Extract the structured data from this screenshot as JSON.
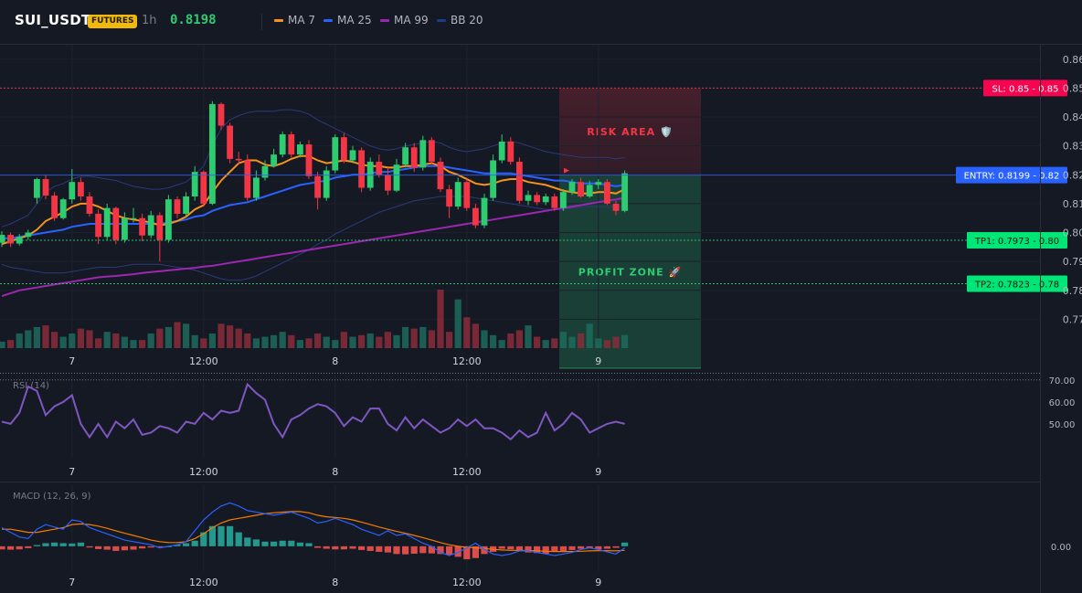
{
  "header": {
    "symbol": "SUI_USDT",
    "badge": "FUTURES",
    "timeframe": "1h",
    "price": "0.8198",
    "legend": [
      {
        "label": "MA 7",
        "color": "#f7931a"
      },
      {
        "label": "MA 25",
        "color": "#2962ff"
      },
      {
        "label": "MA 99",
        "color": "#9c27b0"
      },
      {
        "label": "BB 20",
        "color": "#1e3a8a"
      }
    ]
  },
  "colors": {
    "up": "#2ecc71",
    "down": "#f23645",
    "ma7": "#f7931a",
    "ma25": "#2962ff",
    "ma99": "#9c27b0",
    "bb": "#2a3a7a",
    "rsi": "#7e57c2",
    "macd": "#2962ff",
    "signal": "#f57c00"
  },
  "chart_data": [
    {
      "type": "candlestick",
      "name": "price",
      "x_labels": [
        "7",
        "12:00",
        "8",
        "12:00",
        "9"
      ],
      "x_label_index": [
        8,
        23,
        38,
        53,
        68
      ],
      "ylim": [
        0.76,
        0.865
      ],
      "y_ticks": [
        "0.86",
        "0.85",
        "0.84",
        "0.83",
        "0.82",
        "0.81",
        "0.80",
        "0.79",
        "0.78",
        "0.77"
      ],
      "y_tick_values": [
        0.86,
        0.85,
        0.84,
        0.83,
        0.82,
        0.81,
        0.8,
        0.79,
        0.78,
        0.77
      ],
      "close": [
        0.7992,
        0.7962,
        0.7985,
        0.8,
        0.8185,
        0.8128,
        0.805,
        0.8115,
        0.8175,
        0.8125,
        0.8065,
        0.7985,
        0.8085,
        0.7975,
        0.805,
        0.805,
        0.799,
        0.806,
        0.7975,
        0.8115,
        0.8065,
        0.8125,
        0.821,
        0.81,
        0.8445,
        0.837,
        0.8255,
        0.825,
        0.812,
        0.819,
        0.823,
        0.827,
        0.834,
        0.827,
        0.8305,
        0.8195,
        0.812,
        0.8215,
        0.833,
        0.825,
        0.8285,
        0.8155,
        0.8245,
        0.82,
        0.8145,
        0.8235,
        0.8295,
        0.8225,
        0.832,
        0.8245,
        0.815,
        0.809,
        0.8175,
        0.8085,
        0.8025,
        0.812,
        0.825,
        0.8315,
        0.8245,
        0.811,
        0.813,
        0.8105,
        0.8125,
        0.8085,
        0.814,
        0.8175,
        0.8125,
        0.8165,
        0.8175,
        0.81,
        0.8075,
        0.8205
      ],
      "open": [
        0.7965,
        0.7992,
        0.7962,
        0.7985,
        0.812,
        0.8185,
        0.8128,
        0.805,
        0.8115,
        0.8175,
        0.8125,
        0.8065,
        0.7985,
        0.8085,
        0.7975,
        0.805,
        0.805,
        0.799,
        0.806,
        0.7975,
        0.8115,
        0.8065,
        0.8125,
        0.821,
        0.81,
        0.8445,
        0.837,
        0.8255,
        0.825,
        0.812,
        0.819,
        0.823,
        0.827,
        0.834,
        0.827,
        0.8305,
        0.8195,
        0.812,
        0.8215,
        0.833,
        0.825,
        0.8285,
        0.8155,
        0.8245,
        0.82,
        0.8145,
        0.8235,
        0.8295,
        0.8225,
        0.832,
        0.8245,
        0.815,
        0.809,
        0.8175,
        0.8085,
        0.8025,
        0.812,
        0.825,
        0.8315,
        0.8245,
        0.811,
        0.813,
        0.8105,
        0.8125,
        0.8085,
        0.814,
        0.8175,
        0.8125,
        0.8165,
        0.8175,
        0.81,
        0.8075
      ],
      "high": [
        0.8005,
        0.8,
        0.7995,
        0.801,
        0.819,
        0.82,
        0.814,
        0.812,
        0.822,
        0.819,
        0.814,
        0.808,
        0.81,
        0.809,
        0.807,
        0.8085,
        0.8065,
        0.8075,
        0.807,
        0.813,
        0.8125,
        0.814,
        0.823,
        0.8215,
        0.8455,
        0.845,
        0.838,
        0.828,
        0.827,
        0.8215,
        0.825,
        0.829,
        0.835,
        0.835,
        0.8315,
        0.832,
        0.821,
        0.823,
        0.834,
        0.8345,
        0.83,
        0.8295,
        0.826,
        0.827,
        0.8225,
        0.8255,
        0.831,
        0.831,
        0.8335,
        0.833,
        0.826,
        0.8165,
        0.819,
        0.8185,
        0.81,
        0.8135,
        0.827,
        0.834,
        0.833,
        0.826,
        0.8145,
        0.814,
        0.8135,
        0.8135,
        0.815,
        0.8185,
        0.819,
        0.818,
        0.8185,
        0.8185,
        0.811,
        0.8215
      ],
      "low": [
        0.795,
        0.795,
        0.7955,
        0.7975,
        0.81,
        0.8115,
        0.804,
        0.8045,
        0.81,
        0.811,
        0.8055,
        0.796,
        0.7975,
        0.796,
        0.7965,
        0.8035,
        0.797,
        0.798,
        0.79,
        0.7965,
        0.805,
        0.8055,
        0.811,
        0.809,
        0.8095,
        0.8355,
        0.824,
        0.8235,
        0.811,
        0.811,
        0.818,
        0.8225,
        0.826,
        0.826,
        0.826,
        0.8185,
        0.808,
        0.811,
        0.8205,
        0.824,
        0.824,
        0.814,
        0.8145,
        0.819,
        0.813,
        0.814,
        0.8225,
        0.821,
        0.8215,
        0.8235,
        0.814,
        0.805,
        0.808,
        0.8075,
        0.8015,
        0.8015,
        0.811,
        0.824,
        0.8235,
        0.81,
        0.8095,
        0.8095,
        0.8095,
        0.8075,
        0.8075,
        0.813,
        0.812,
        0.812,
        0.815,
        0.8095,
        0.806,
        0.807
      ],
      "ma7": [
        0.796,
        0.797,
        0.798,
        0.799,
        0.801,
        0.804,
        0.8055,
        0.807,
        0.809,
        0.81,
        0.81,
        0.809,
        0.8075,
        0.806,
        0.805,
        0.8045,
        0.804,
        0.8035,
        0.8025,
        0.803,
        0.804,
        0.8055,
        0.808,
        0.8095,
        0.814,
        0.818,
        0.821,
        0.824,
        0.825,
        0.825,
        0.8235,
        0.823,
        0.824,
        0.8255,
        0.8265,
        0.8265,
        0.825,
        0.824,
        0.8245,
        0.825,
        0.8245,
        0.8235,
        0.823,
        0.823,
        0.8225,
        0.8225,
        0.823,
        0.823,
        0.8235,
        0.824,
        0.823,
        0.821,
        0.82,
        0.8185,
        0.817,
        0.8165,
        0.817,
        0.818,
        0.8185,
        0.8185,
        0.8175,
        0.817,
        0.8165,
        0.8155,
        0.8145,
        0.814,
        0.8135,
        0.8135,
        0.814,
        0.814,
        0.8135,
        0.815
      ],
      "ma25": [
        0.798,
        0.798,
        0.7985,
        0.799,
        0.7995,
        0.8,
        0.8005,
        0.801,
        0.802,
        0.8025,
        0.803,
        0.803,
        0.803,
        0.803,
        0.803,
        0.803,
        0.803,
        0.803,
        0.803,
        0.8035,
        0.804,
        0.8045,
        0.8055,
        0.806,
        0.8075,
        0.8085,
        0.8095,
        0.81,
        0.8105,
        0.8115,
        0.8125,
        0.8135,
        0.8145,
        0.8155,
        0.8165,
        0.817,
        0.8175,
        0.818,
        0.819,
        0.8195,
        0.82,
        0.82,
        0.8205,
        0.821,
        0.821,
        0.8215,
        0.822,
        0.8225,
        0.823,
        0.823,
        0.823,
        0.8225,
        0.822,
        0.8215,
        0.821,
        0.8205,
        0.8205,
        0.8205,
        0.8205,
        0.82,
        0.8195,
        0.819,
        0.8185,
        0.818,
        0.818,
        0.8175,
        0.817,
        0.817,
        0.817,
        0.8165,
        0.816,
        0.8165
      ],
      "ma99": [
        0.778,
        0.779,
        0.78,
        0.7805,
        0.781,
        0.7815,
        0.782,
        0.7825,
        0.783,
        0.7835,
        0.784,
        0.7845,
        0.7848,
        0.785,
        0.7853,
        0.7856,
        0.786,
        0.7863,
        0.7866,
        0.7869,
        0.7872,
        0.7875,
        0.7878,
        0.7882,
        0.7885,
        0.789,
        0.7895,
        0.79,
        0.7905,
        0.791,
        0.7915,
        0.792,
        0.7925,
        0.793,
        0.7935,
        0.794,
        0.7945,
        0.795,
        0.7955,
        0.796,
        0.7965,
        0.797,
        0.7975,
        0.798,
        0.7985,
        0.799,
        0.7995,
        0.8,
        0.8005,
        0.801,
        0.8015,
        0.802,
        0.8025,
        0.803,
        0.8035,
        0.804,
        0.8045,
        0.805,
        0.8055,
        0.806,
        0.8065,
        0.807,
        0.8075,
        0.808,
        0.8085,
        0.809,
        0.8095,
        0.81,
        0.8105,
        0.811,
        0.8115,
        0.812
      ],
      "bb_upper": [
        0.802,
        0.803,
        0.8045,
        0.806,
        0.81,
        0.814,
        0.816,
        0.817,
        0.8185,
        0.8195,
        0.8195,
        0.819,
        0.8185,
        0.818,
        0.817,
        0.816,
        0.8155,
        0.815,
        0.815,
        0.8155,
        0.8165,
        0.8175,
        0.82,
        0.823,
        0.83,
        0.836,
        0.839,
        0.8405,
        0.8415,
        0.842,
        0.842,
        0.842,
        0.8425,
        0.8425,
        0.842,
        0.841,
        0.839,
        0.8375,
        0.836,
        0.8345,
        0.833,
        0.8315,
        0.83,
        0.829,
        0.8285,
        0.829,
        0.83,
        0.8305,
        0.831,
        0.8315,
        0.831,
        0.8295,
        0.8285,
        0.828,
        0.8285,
        0.829,
        0.83,
        0.831,
        0.8315,
        0.831,
        0.83,
        0.829,
        0.828,
        0.8275,
        0.827,
        0.8265,
        0.826,
        0.826,
        0.826,
        0.826,
        0.8255,
        0.826
      ],
      "bb_lower": [
        0.789,
        0.788,
        0.7875,
        0.787,
        0.7865,
        0.786,
        0.786,
        0.786,
        0.7865,
        0.787,
        0.7875,
        0.788,
        0.788,
        0.788,
        0.7885,
        0.789,
        0.789,
        0.789,
        0.789,
        0.7885,
        0.788,
        0.7875,
        0.787,
        0.786,
        0.785,
        0.784,
        0.7835,
        0.7835,
        0.784,
        0.785,
        0.7865,
        0.788,
        0.7895,
        0.791,
        0.7925,
        0.794,
        0.796,
        0.7975,
        0.7995,
        0.801,
        0.8025,
        0.804,
        0.8055,
        0.807,
        0.808,
        0.809,
        0.81,
        0.811,
        0.8115,
        0.812,
        0.8125,
        0.8125,
        0.8125,
        0.8125,
        0.812,
        0.8115,
        0.811,
        0.8105,
        0.81,
        0.8095,
        0.809,
        0.8085,
        0.808,
        0.808,
        0.808,
        0.8085,
        0.809,
        0.809,
        0.809,
        0.809,
        0.809,
        0.809
      ],
      "volume": [
        8,
        10,
        18,
        22,
        26,
        28,
        20,
        14,
        18,
        24,
        22,
        12,
        20,
        18,
        14,
        10,
        10,
        18,
        24,
        26,
        32,
        30,
        16,
        12,
        18,
        30,
        28,
        24,
        18,
        12,
        14,
        16,
        20,
        16,
        10,
        12,
        18,
        14,
        10,
        20,
        14,
        16,
        18,
        14,
        20,
        16,
        26,
        24,
        26,
        22,
        72,
        20,
        60,
        38,
        30,
        22,
        16,
        10,
        18,
        22,
        28,
        14,
        10,
        12,
        20,
        14,
        18,
        30,
        12,
        10,
        14,
        16
      ]
    },
    {
      "type": "line",
      "name": "RSI (14)",
      "ylim": [
        35,
        72
      ],
      "y_ticks": [
        "70.00",
        "60.00",
        "50.00"
      ],
      "y_tick_values": [
        70,
        60,
        50
      ],
      "reference_line": 70,
      "values": [
        51,
        50,
        55,
        67,
        65,
        54,
        58,
        60,
        63,
        50,
        44,
        50,
        44,
        51,
        48,
        52,
        45,
        46,
        49,
        48,
        46,
        51,
        50,
        55,
        52,
        56,
        55,
        56,
        68,
        64,
        61,
        50,
        44,
        52,
        54,
        57,
        59,
        58,
        55,
        49,
        53,
        51,
        57,
        57,
        50,
        47,
        53,
        48,
        52,
        49,
        46,
        48,
        52,
        49,
        52,
        48,
        48,
        46,
        43,
        47,
        44,
        46,
        55,
        47,
        50,
        55,
        52,
        46,
        48,
        50,
        51,
        50
      ]
    },
    {
      "type": "bar+line",
      "name": "MACD (12, 26, 9)",
      "ylim": [
        -0.008,
        0.02
      ],
      "y_ticks": [
        "0.00"
      ],
      "y_tick_values": [
        0.0
      ],
      "histogram": [
        -0.001,
        -0.0011,
        -0.001,
        -0.0006,
        0.0004,
        0.001,
        0.0012,
        0.001,
        0.0009,
        0.0012,
        -0.0004,
        -0.0009,
        -0.0011,
        -0.0015,
        -0.0013,
        -0.0011,
        -0.0007,
        -0.0004,
        -0.0002,
        0.0,
        0.0005,
        0.001,
        0.0018,
        0.0045,
        0.0065,
        0.0065,
        0.0065,
        0.0045,
        0.0028,
        0.0022,
        0.0015,
        0.0015,
        0.0018,
        0.0018,
        0.0012,
        0.001,
        -0.0005,
        -0.0008,
        -0.001,
        -0.001,
        -0.0008,
        -0.0012,
        -0.0015,
        -0.0018,
        -0.002,
        -0.0025,
        -0.0026,
        -0.0024,
        -0.0022,
        -0.0023,
        -0.0025,
        -0.0028,
        -0.0034,
        -0.0042,
        -0.0038,
        -0.0025,
        -0.0018,
        -0.0008,
        -0.001,
        -0.0015,
        -0.002,
        -0.0022,
        -0.0024,
        -0.0018,
        -0.0015,
        -0.0012,
        -0.0008,
        -0.0006,
        -0.001,
        -0.0008,
        -0.0005,
        0.0012
      ],
      "macd": [
        0.006,
        0.0045,
        0.003,
        0.0025,
        0.0055,
        0.007,
        0.0062,
        0.0055,
        0.0085,
        0.008,
        0.006,
        0.005,
        0.004,
        0.003,
        0.002,
        0.0015,
        0.001,
        0.0005,
        -0.0005,
        0.0,
        0.0005,
        0.0015,
        0.005,
        0.0085,
        0.011,
        0.013,
        0.014,
        0.013,
        0.0115,
        0.011,
        0.0105,
        0.01,
        0.0105,
        0.011,
        0.01,
        0.009,
        0.0075,
        0.008,
        0.009,
        0.008,
        0.007,
        0.0055,
        0.0045,
        0.0035,
        0.005,
        0.0035,
        0.004,
        0.0025,
        0.001,
        0.0,
        -0.002,
        -0.003,
        -0.002,
        -0.0005,
        0.001,
        -0.001,
        -0.0025,
        -0.003,
        -0.0025,
        -0.0015,
        -0.0015,
        -0.002,
        -0.0025,
        -0.003,
        -0.0025,
        -0.002,
        -0.001,
        -0.0005,
        -0.001,
        -0.0018,
        -0.0025,
        -0.0005
      ],
      "signal": [
        0.0055,
        0.0055,
        0.005,
        0.0045,
        0.0045,
        0.005,
        0.0055,
        0.006,
        0.007,
        0.0072,
        0.007,
        0.0065,
        0.0058,
        0.005,
        0.0042,
        0.0035,
        0.0028,
        0.002,
        0.0015,
        0.0012,
        0.0012,
        0.0015,
        0.0025,
        0.004,
        0.006,
        0.0075,
        0.0085,
        0.009,
        0.0095,
        0.01,
        0.0105,
        0.0108,
        0.011,
        0.0112,
        0.0112,
        0.0108,
        0.01,
        0.0095,
        0.0093,
        0.009,
        0.0085,
        0.0078,
        0.007,
        0.0062,
        0.0055,
        0.0048,
        0.0042,
        0.0035,
        0.0028,
        0.002,
        0.0012,
        0.0005,
        0.0,
        -0.0003,
        -0.0005,
        -0.0007,
        -0.001,
        -0.0012,
        -0.0013,
        -0.0013,
        -0.0014,
        -0.0015,
        -0.0016,
        -0.0017,
        -0.0017,
        -0.0017,
        -0.0016,
        -0.0015,
        -0.0014,
        -0.0014,
        -0.0015,
        -0.0013
      ]
    }
  ],
  "levels": {
    "sl": {
      "value": 0.85,
      "text": "SL: 0.85",
      "tag": "0.85"
    },
    "entry": {
      "value": 0.8199,
      "text": "ENTRY: 0.8199",
      "tag": "0.82"
    },
    "tp1": {
      "value": 0.7973,
      "text": "TP1: 0.7973",
      "tag": "0.80"
    },
    "tp2": {
      "value": 0.7823,
      "text": "TP2: 0.7823",
      "tag": "0.78"
    }
  },
  "zones": {
    "risk_label": "RISK AREA 🛡️",
    "profit_label": "PROFIT ZONE 🚀"
  }
}
